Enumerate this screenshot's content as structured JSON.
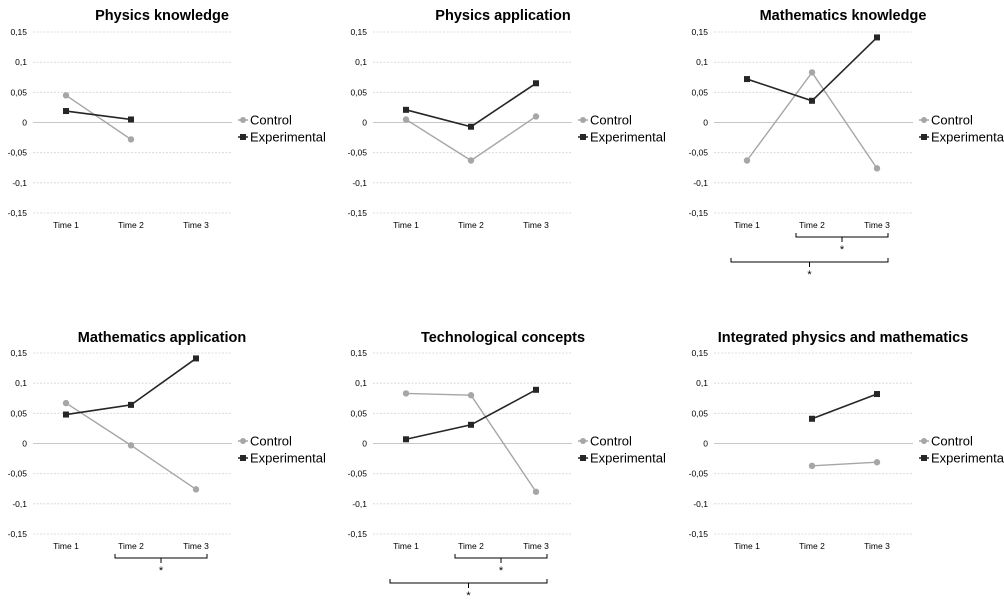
{
  "colors": {
    "control": "#a6a6a6",
    "experimental": "#262626"
  },
  "chart_data": [
    {
      "type": "line",
      "title": "Physics knowledge",
      "categories": [
        "Time 1",
        "Time 2",
        "Time 3"
      ],
      "ylim": [
        -0.15,
        0.15
      ],
      "yticks": [
        0.15,
        0.1,
        0.05,
        0,
        -0.05,
        -0.1,
        -0.15
      ],
      "ytick_labels": [
        "0,15",
        "0,1",
        "0,05",
        "0",
        "-0,05",
        "-0,1",
        "-0,15"
      ],
      "grid": true,
      "legend_position": "right",
      "series": [
        {
          "name": "Control",
          "values": [
            0.045,
            -0.028,
            null
          ]
        },
        {
          "name": "Experimental",
          "values": [
            0.019,
            0.005,
            null
          ]
        }
      ],
      "significance": []
    },
    {
      "type": "line",
      "title": "Physics application",
      "categories": [
        "Time 1",
        "Time 2",
        "Time 3"
      ],
      "ylim": [
        -0.15,
        0.15
      ],
      "yticks": [
        0.15,
        0.1,
        0.05,
        0,
        -0.05,
        -0.1,
        -0.15
      ],
      "ytick_labels": [
        "0,15",
        "0,1",
        "0,05",
        "0",
        "-0,05",
        "-0,1",
        "-0,15"
      ],
      "grid": true,
      "legend_position": "right",
      "series": [
        {
          "name": "Control",
          "values": [
            0.005,
            -0.063,
            0.01
          ]
        },
        {
          "name": "Experimental",
          "values": [
            0.021,
            -0.007,
            0.065
          ]
        }
      ],
      "significance": []
    },
    {
      "type": "line",
      "title": "Mathematics knowledge",
      "categories": [
        "Time 1",
        "Time 2",
        "Time 3"
      ],
      "ylim": [
        -0.15,
        0.15
      ],
      "yticks": [
        0.15,
        0.1,
        0.05,
        0,
        -0.05,
        -0.1,
        -0.15
      ],
      "ytick_labels": [
        "0,15",
        "0,1",
        "0,05",
        "0",
        "-0,05",
        "-0,1",
        "-0,15"
      ],
      "grid": true,
      "legend_position": "right",
      "series": [
        {
          "name": "Control",
          "values": [
            -0.063,
            0.083,
            -0.076
          ]
        },
        {
          "name": "Experimental",
          "values": [
            0.072,
            0.036,
            0.141
          ]
        }
      ],
      "significance": [
        {
          "from": 1,
          "to": 2,
          "label": "*"
        },
        {
          "from": 0,
          "to": 2,
          "label": "*"
        }
      ]
    },
    {
      "type": "line",
      "title": "Mathematics application",
      "categories": [
        "Time 1",
        "Time 2",
        "Time 3"
      ],
      "ylim": [
        -0.15,
        0.15
      ],
      "yticks": [
        0.15,
        0.1,
        0.05,
        0,
        -0.05,
        -0.1,
        -0.15
      ],
      "ytick_labels": [
        "0,15",
        "0,1",
        "0,05",
        "0",
        "-0,05",
        "-0,1",
        "-0,15"
      ],
      "grid": true,
      "legend_position": "right",
      "series": [
        {
          "name": "Control",
          "values": [
            0.067,
            -0.003,
            -0.076
          ]
        },
        {
          "name": "Experimental",
          "values": [
            0.048,
            0.064,
            0.141
          ]
        }
      ],
      "significance": [
        {
          "from": 1,
          "to": 2,
          "label": "*"
        }
      ]
    },
    {
      "type": "line",
      "title": "Technological concepts",
      "categories": [
        "Time 1",
        "Time 2",
        "Time 3"
      ],
      "ylim": [
        -0.15,
        0.15
      ],
      "yticks": [
        0.15,
        0.1,
        0.05,
        0,
        -0.05,
        -0.1,
        -0.15
      ],
      "ytick_labels": [
        "0,15",
        "0,1",
        "0,05",
        "0",
        "-0,05",
        "-0,1",
        "-0,15"
      ],
      "grid": true,
      "legend_position": "right",
      "series": [
        {
          "name": "Control",
          "values": [
            0.083,
            0.08,
            -0.08
          ]
        },
        {
          "name": "Experimental",
          "values": [
            0.007,
            0.031,
            0.089
          ]
        }
      ],
      "significance": [
        {
          "from": 1,
          "to": 2,
          "label": "*"
        },
        {
          "from": 0,
          "to": 2,
          "label": "*"
        }
      ]
    },
    {
      "type": "line",
      "title": "Integrated physics and mathematics",
      "categories": [
        "Time 1",
        "Time 2",
        "Time 3"
      ],
      "ylim": [
        -0.15,
        0.15
      ],
      "yticks": [
        0.15,
        0.1,
        0.05,
        0,
        -0.05,
        -0.1,
        -0.15
      ],
      "ytick_labels": [
        "0,15",
        "0,1",
        "0,05",
        "0",
        "-0,05",
        "-0,1",
        "-0,15"
      ],
      "grid": true,
      "legend_position": "right",
      "series": [
        {
          "name": "Control",
          "values": [
            null,
            -0.037,
            -0.031
          ]
        },
        {
          "name": "Experimental",
          "values": [
            null,
            0.041,
            0.082
          ]
        }
      ],
      "significance": []
    }
  ]
}
